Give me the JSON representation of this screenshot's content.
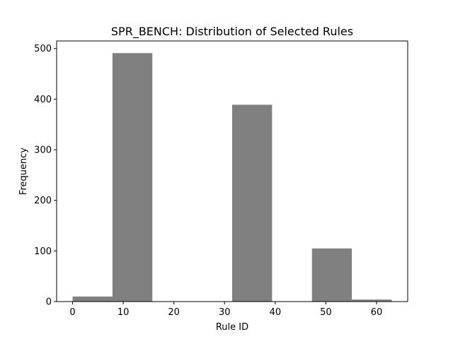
{
  "chart_data": {
    "type": "bar",
    "title": "SPR_BENCH: Distribution of Selected Rules",
    "xlabel": "Rule ID",
    "ylabel": "Frequency",
    "bin_edges": [
      0,
      7.875,
      15.75,
      23.625,
      31.5,
      39.375,
      47.25,
      55.125,
      63
    ],
    "values": [
      10,
      491,
      0,
      0,
      389,
      0,
      105,
      4
    ],
    "xlim": [
      -3.15,
      66.15
    ],
    "ylim": [
      0,
      515
    ],
    "xticks": [
      0,
      10,
      20,
      30,
      40,
      50,
      60
    ],
    "yticks": [
      0,
      100,
      200,
      300,
      400,
      500
    ],
    "bar_color": "#808080",
    "grid": false,
    "legend": false
  }
}
